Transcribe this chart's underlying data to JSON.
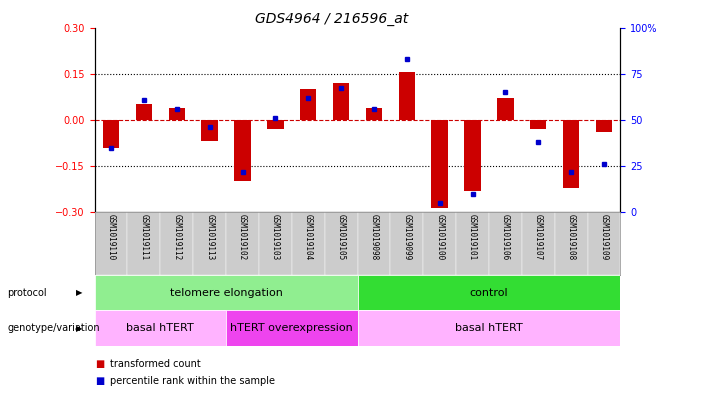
{
  "title": "GDS4964 / 216596_at",
  "samples": [
    "GSM1019110",
    "GSM1019111",
    "GSM1019112",
    "GSM1019113",
    "GSM1019102",
    "GSM1019103",
    "GSM1019104",
    "GSM1019105",
    "GSM1019098",
    "GSM1019099",
    "GSM1019100",
    "GSM1019101",
    "GSM1019106",
    "GSM1019107",
    "GSM1019108",
    "GSM1019109"
  ],
  "red_bars": [
    -0.09,
    0.05,
    0.04,
    -0.07,
    -0.2,
    -0.03,
    0.1,
    0.12,
    0.04,
    0.155,
    -0.285,
    -0.23,
    0.07,
    -0.03,
    -0.22,
    -0.04
  ],
  "blue_dots_pct": [
    35,
    61,
    56,
    46,
    22,
    51,
    62,
    67,
    56,
    83,
    5,
    10,
    65,
    38,
    22,
    26
  ],
  "ylim_left": [
    -0.3,
    0.3
  ],
  "ylim_right": [
    0,
    100
  ],
  "yticks_left": [
    -0.3,
    -0.15,
    0.0,
    0.15,
    0.3
  ],
  "yticks_right": [
    0,
    25,
    50,
    75,
    100
  ],
  "protocol_groups": [
    {
      "label": "telomere elongation",
      "start": 0,
      "end": 8,
      "color": "#90EE90"
    },
    {
      "label": "control",
      "start": 8,
      "end": 16,
      "color": "#33DD33"
    }
  ],
  "genotype_groups": [
    {
      "label": "basal hTERT",
      "start": 0,
      "end": 4,
      "color": "#FFB3FF"
    },
    {
      "label": "hTERT overexpression",
      "start": 4,
      "end": 8,
      "color": "#EE44EE"
    },
    {
      "label": "basal hTERT",
      "start": 8,
      "end": 16,
      "color": "#FFB3FF"
    }
  ],
  "legend_items": [
    {
      "label": "transformed count",
      "color": "#CC0000"
    },
    {
      "label": "percentile rank within the sample",
      "color": "#0000CC"
    }
  ],
  "bar_color": "#CC0000",
  "dot_color": "#0000CC",
  "hline_color": "#CC0000",
  "grid_color": "#000000",
  "bg_color": "#FFFFFF",
  "label_bg": "#CCCCCC",
  "title_fontsize": 10,
  "tick_fontsize": 7,
  "sample_fontsize": 5.5,
  "row_fontsize": 8,
  "legend_fontsize": 7
}
